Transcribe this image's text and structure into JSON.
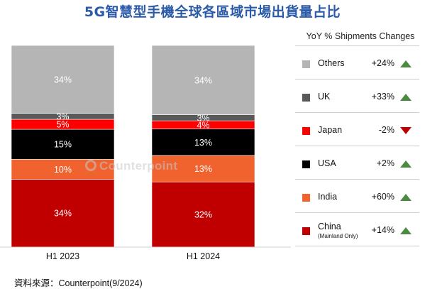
{
  "title": "5G智慧型手機全球各區域市場出貨量占比",
  "source": "資料來源：Counterpoint(9/2024)",
  "watermark": "Counterpoint",
  "chart_data": {
    "type": "bar",
    "stacked": true,
    "categories": [
      "H1 2023",
      "H1 2024"
    ],
    "ylim": [
      0,
      100
    ],
    "series": [
      {
        "name": "China",
        "color": "#c00000",
        "values": [
          34,
          32
        ],
        "labels": [
          "34%",
          "32%"
        ]
      },
      {
        "name": "India",
        "color": "#f0622e",
        "values": [
          10,
          13
        ],
        "labels": [
          "10%",
          "13%"
        ]
      },
      {
        "name": "USA",
        "color": "#000000",
        "values": [
          15,
          13
        ],
        "labels": [
          "15%",
          "13%"
        ]
      },
      {
        "name": "Japan",
        "color": "#ff0000",
        "values": [
          5,
          4
        ],
        "labels": [
          "5%",
          "4%"
        ]
      },
      {
        "name": "UK",
        "color": "#595959",
        "values": [
          3,
          3
        ],
        "labels": [
          "3%",
          "3%"
        ]
      },
      {
        "name": "Others",
        "color": "#b5b5b5",
        "values": [
          34,
          34
        ],
        "labels": [
          "34%",
          "34%"
        ]
      }
    ]
  },
  "legend": {
    "title": "YoY % Shipments Changes",
    "items": [
      {
        "name": "Others",
        "sub": "",
        "color": "#b5b5b5",
        "change": "+24%",
        "trend": "up"
      },
      {
        "name": "UK",
        "sub": "",
        "color": "#595959",
        "change": "+33%",
        "trend": "up"
      },
      {
        "name": "Japan",
        "sub": "",
        "color": "#ff0000",
        "change": "-2%",
        "trend": "down"
      },
      {
        "name": "USA",
        "sub": "",
        "color": "#000000",
        "change": "+2%",
        "trend": "up"
      },
      {
        "name": "India",
        "sub": "",
        "color": "#f0622e",
        "change": "+60%",
        "trend": "up"
      },
      {
        "name": "China",
        "sub": "(Mainland Only)",
        "color": "#c00000",
        "change": "+14%",
        "trend": "up"
      }
    ]
  }
}
